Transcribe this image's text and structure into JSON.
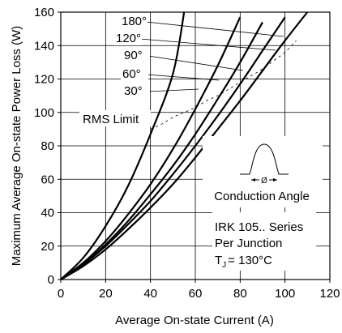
{
  "chart_data": {
    "type": "line",
    "xlabel": "Average On-state Current (A)",
    "ylabel": "Maximum Average On-state Power Loss (W)",
    "xlim": [
      0,
      120
    ],
    "ylim": [
      0,
      160
    ],
    "xticks": [
      "0",
      "20",
      "40",
      "60",
      "80",
      "100",
      "120"
    ],
    "yticks": [
      "0",
      "20",
      "40",
      "60",
      "80",
      "100",
      "120",
      "140",
      "160"
    ],
    "grid": true,
    "series": [
      {
        "name": "180°",
        "x": [
          0,
          10,
          20,
          30,
          40,
          50,
          60,
          70,
          80,
          90,
          100,
          110
        ],
        "y": [
          0,
          8,
          18,
          30,
          43,
          57,
          73,
          90,
          107,
          125,
          143,
          160
        ]
      },
      {
        "name": "120°",
        "x": [
          0,
          10,
          20,
          30,
          40,
          50,
          60,
          70,
          80,
          90,
          100
        ],
        "y": [
          0,
          9,
          20,
          33,
          47,
          63,
          80,
          98,
          117,
          137,
          157
        ]
      },
      {
        "name": "90°",
        "x": [
          0,
          10,
          20,
          30,
          40,
          50,
          60,
          70,
          80,
          90
        ],
        "y": [
          0,
          9,
          21,
          35,
          51,
          68,
          87,
          108,
          130,
          154
        ]
      },
      {
        "name": "60°",
        "x": [
          0,
          10,
          20,
          30,
          40,
          50,
          60,
          70,
          80
        ],
        "y": [
          0,
          10,
          23,
          39,
          57,
          78,
          102,
          128,
          157
        ]
      },
      {
        "name": "30°",
        "x": [
          0,
          10,
          20,
          30,
          40,
          50,
          55
        ],
        "y": [
          0,
          13,
          32,
          56,
          87,
          123,
          160
        ]
      }
    ],
    "rms_limit_line": {
      "label": "RMS Limit",
      "x": [
        40,
        45,
        50,
        55,
        60,
        65,
        70,
        75,
        80,
        85,
        90,
        95,
        100,
        105
      ],
      "y": [
        90,
        93,
        97,
        100,
        103,
        107,
        110,
        114,
        118,
        122,
        126,
        131,
        136,
        143
      ]
    },
    "annotations": {
      "conduction_angle": "Conduction Angle",
      "phi": "Ø",
      "series_line1": "IRK 105.. Series",
      "series_line2": "Per Junction",
      "tj_prefix": "T",
      "tj_sub": "J",
      "tj_value": "= 130°C"
    }
  }
}
